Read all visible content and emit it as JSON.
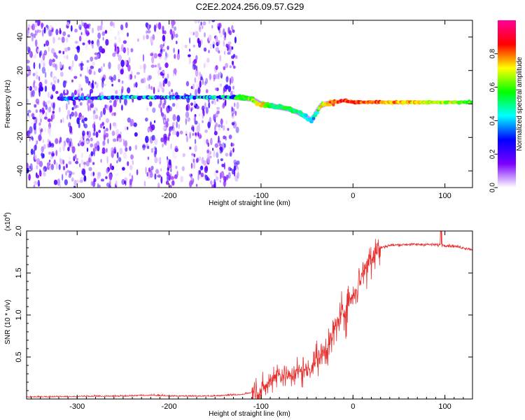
{
  "title": "C2E2.2024.256.09.57.G29",
  "chart_data": [
    {
      "type": "heatmap",
      "xlabel": "Height of straight line (km)",
      "ylabel": "Frequency (Hz)",
      "xlim": [
        -355,
        130
      ],
      "ylim": [
        -50,
        50
      ],
      "xticks": [
        -300,
        -200,
        -100,
        0,
        100
      ],
      "yticks": [
        -40,
        -20,
        0,
        20,
        40
      ],
      "grid": false,
      "colorbar": {
        "label": "Normalized spectral amplitude",
        "range": [
          0,
          1
        ],
        "ticks": [
          "0.0",
          "0.2",
          "0.4",
          "0.6",
          "0.8"
        ],
        "colormap": [
          "#ffffff",
          "#7a00ff",
          "#0000ff",
          "#00ffff",
          "#00ff00",
          "#ffff00",
          "#ff0000",
          "#ff0099"
        ]
      },
      "ridge": {
        "x": [
          -320,
          -250,
          -200,
          -150,
          -130,
          -110,
          -100,
          -90,
          -80,
          -70,
          -60,
          -50,
          -45,
          -40,
          -35,
          -30,
          -20,
          -10,
          0,
          20,
          60,
          130
        ],
        "freq": [
          3,
          4,
          4,
          4,
          4,
          3,
          0,
          -1,
          -2,
          -3,
          -5,
          -8,
          -10,
          -5,
          -1,
          0,
          1,
          2,
          1,
          1,
          1,
          1
        ],
        "amplitude": [
          0.35,
          0.45,
          0.45,
          0.45,
          0.55,
          0.6,
          0.7,
          0.55,
          0.5,
          0.55,
          0.5,
          0.45,
          0.4,
          0.45,
          0.7,
          0.75,
          0.8,
          0.85,
          0.85,
          0.8,
          0.75,
          0.6
        ]
      }
    },
    {
      "type": "line",
      "xlabel": "Height of straight line (km)",
      "ylabel": "SNR (10 * v/v)",
      "yscale_label": "(x10",
      "yscale_exp": "4",
      "yscale_suffix": ")",
      "xlim": [
        -355,
        130
      ],
      "ylim": [
        0,
        2.0
      ],
      "xticks": [
        -300,
        -200,
        -100,
        0,
        100
      ],
      "yticks": [
        "0.5",
        "1.0",
        "1.5",
        "2.0"
      ],
      "ytick_values": [
        0.5,
        1.0,
        1.5,
        2.0
      ],
      "color": "#e8312f",
      "grid": false,
      "series": [
        {
          "x": [
            -355,
            -250,
            -220,
            -200,
            -150,
            -120,
            -100,
            -90,
            -85,
            -80,
            -70,
            -60,
            -50,
            -40,
            -30,
            -20,
            -15,
            -10,
            -5,
            0,
            5,
            10,
            15,
            20,
            30,
            40,
            60,
            80,
            100,
            110,
            120,
            130
          ],
          "y": [
            0.02,
            0.03,
            0.04,
            0.03,
            0.03,
            0.05,
            0.1,
            0.2,
            0.3,
            0.3,
            0.28,
            0.32,
            0.35,
            0.45,
            0.6,
            0.8,
            0.95,
            1.05,
            1.15,
            1.25,
            1.35,
            1.5,
            1.6,
            1.7,
            1.8,
            1.83,
            1.84,
            1.84,
            1.83,
            1.82,
            1.8,
            1.78
          ]
        }
      ]
    }
  ]
}
